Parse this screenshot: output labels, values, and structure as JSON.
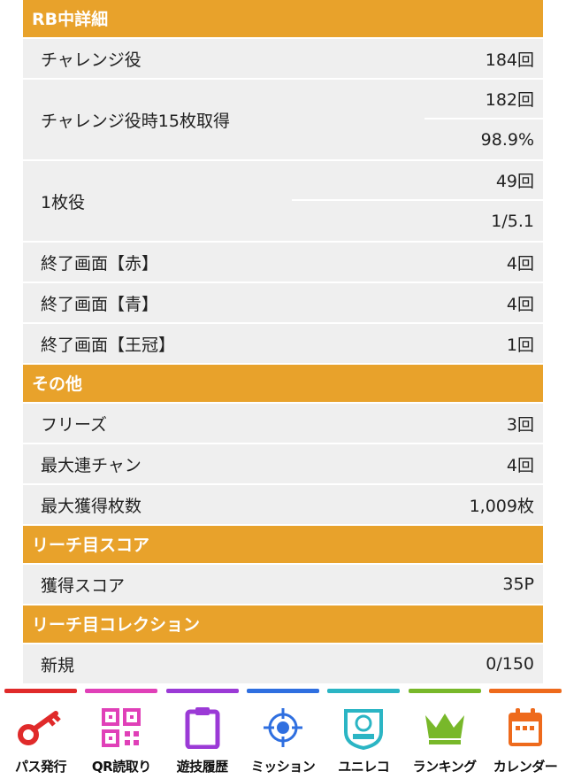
{
  "sections": {
    "rb": {
      "title": "RB中詳細",
      "challenge": {
        "label": "チャレンジ役",
        "value": "184回"
      },
      "challenge15": {
        "label": "チャレンジ役時15枚取得",
        "value1": "182回",
        "value2": "98.9%"
      },
      "one": {
        "label": "1枚役",
        "value1": "49回",
        "value2": "1/5.1"
      },
      "end_red": {
        "label": "終了画面【赤】",
        "value": "4回"
      },
      "end_blue": {
        "label": "終了画面【青】",
        "value": "4回"
      },
      "end_crown": {
        "label": "終了画面【王冠】",
        "value": "1回"
      }
    },
    "other": {
      "title": "その他",
      "freeze": {
        "label": "フリーズ",
        "value": "3回"
      },
      "max_chain": {
        "label": "最大連チャン",
        "value": "4回"
      },
      "max_coins": {
        "label": "最大獲得枚数",
        "value": "1,009枚"
      }
    },
    "reach_score": {
      "title": "リーチ目スコア",
      "score": {
        "label": "獲得スコア",
        "value": "35P"
      }
    },
    "reach_collection": {
      "title": "リーチ目コレクション",
      "new": {
        "label": "新規",
        "value": "0/150"
      }
    }
  },
  "nav": [
    {
      "label": "パス発行",
      "icon": "key-icon",
      "color": "#e02a2a"
    },
    {
      "label": "QR読取り",
      "icon": "qr-icon",
      "color": "#e040b8"
    },
    {
      "label": "遊技履歴",
      "icon": "clipboard-icon",
      "color": "#9b3ad6"
    },
    {
      "label": "ミッション",
      "icon": "target-icon",
      "color": "#2f6fe0"
    },
    {
      "label": "ユニレコ",
      "icon": "unireco-badge-icon",
      "color": "#2bb5c4"
    },
    {
      "label": "ランキング",
      "icon": "crown-icon",
      "color": "#78b82a"
    },
    {
      "label": "カレンダー",
      "icon": "calendar-icon",
      "color": "#ee6a1c"
    }
  ]
}
